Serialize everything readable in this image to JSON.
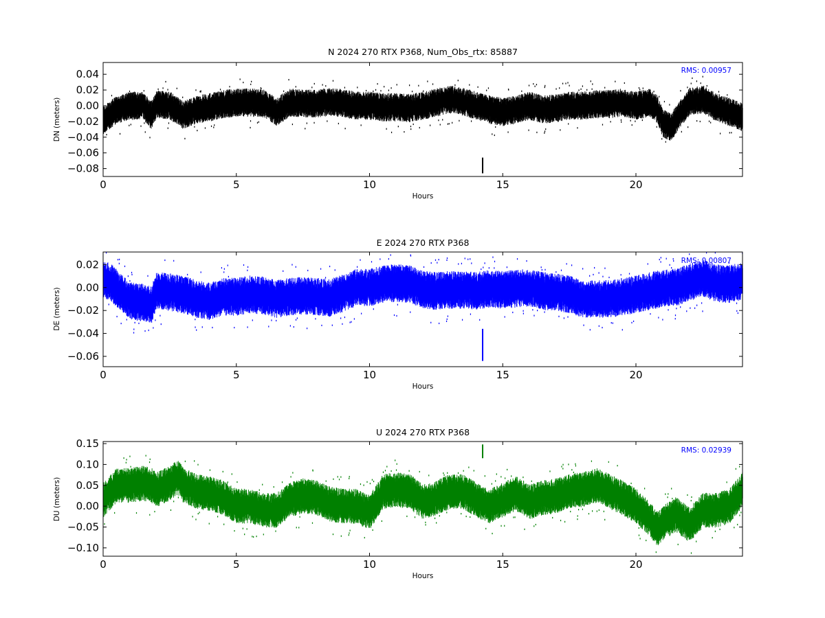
{
  "chart_data": [
    {
      "type": "scatter",
      "title": "N 2024 270 RTX  P368, Num_Obs_rtx: 85887",
      "xlabel": "Hours",
      "ylabel": "DN (meters)",
      "xlim": [
        0,
        24
      ],
      "ylim": [
        -0.09,
        0.055
      ],
      "xticks": [
        "0",
        "5",
        "10",
        "15",
        "20"
      ],
      "yticks": [
        "0.04",
        "0.02",
        "0.00",
        "−0.02",
        "−0.04",
        "−0.06",
        "−0.08"
      ],
      "grid": false,
      "annotation": "RMS:  0.00957",
      "series": [
        {
          "color": "#000000",
          "x": [
            0,
            0.5,
            1,
            1.5,
            1.8,
            2,
            2.5,
            3,
            3.5,
            4,
            4.5,
            5,
            5.5,
            6,
            6.5,
            7,
            7.5,
            8,
            8.5,
            9,
            9.5,
            10,
            10.5,
            11,
            11.5,
            12,
            12.5,
            13,
            13.5,
            14,
            14.5,
            15,
            15.5,
            16,
            16.5,
            17,
            17.5,
            18,
            18.5,
            19,
            19.5,
            20,
            20.5,
            20.8,
            21,
            21.3,
            21.6,
            22,
            22.5,
            23,
            23.5,
            24
          ],
          "y": [
            -0.018,
            -0.005,
            0.0,
            0.0,
            -0.012,
            0.002,
            0.0,
            -0.012,
            -0.005,
            -0.002,
            0.002,
            0.004,
            0.004,
            0.003,
            -0.008,
            0.004,
            0.003,
            0.003,
            0.005,
            0.003,
            0.0,
            0.0,
            -0.002,
            -0.002,
            -0.003,
            0.0,
            0.004,
            0.008,
            0.005,
            0.0,
            -0.005,
            -0.008,
            -0.005,
            0.0,
            -0.005,
            -0.003,
            0.0,
            0.0,
            0.002,
            0.002,
            0.004,
            0.0,
            0.004,
            -0.005,
            -0.022,
            -0.028,
            -0.012,
            0.005,
            0.008,
            -0.002,
            -0.008,
            -0.015
          ],
          "spread": 0.012,
          "outliers": [
            {
              "x": 14.22,
              "y": [
                -0.066,
                -0.086
              ]
            }
          ]
        }
      ]
    },
    {
      "type": "scatter",
      "title": "E 2024 270 RTX  P368",
      "xlabel": "Hours",
      "ylabel": "DE (meters)",
      "xlim": [
        0,
        24
      ],
      "ylim": [
        -0.069,
        0.031
      ],
      "xticks": [
        "0",
        "5",
        "10",
        "15",
        "20"
      ],
      "yticks": [
        "0.02",
        "0.00",
        "−0.02",
        "−0.04",
        "−0.06"
      ],
      "grid": false,
      "annotation": "RMS:  0.00807",
      "series": [
        {
          "color": "#0000ff",
          "x": [
            0,
            0.3,
            0.6,
            1,
            1.5,
            1.8,
            2,
            2.5,
            3,
            3.5,
            4,
            4.5,
            5,
            5.5,
            6,
            6.5,
            7,
            7.5,
            8,
            8.5,
            9,
            9.5,
            10,
            10.5,
            11,
            11.5,
            12,
            12.5,
            13,
            13.5,
            14,
            14.5,
            15,
            15.5,
            16,
            16.5,
            17,
            17.5,
            18,
            18.5,
            19,
            19.5,
            20,
            20.5,
            21,
            21.5,
            22,
            22.5,
            23,
            23.5,
            24
          ],
          "y": [
            0.008,
            0.004,
            -0.003,
            -0.012,
            -0.013,
            -0.015,
            -0.003,
            -0.004,
            -0.006,
            -0.01,
            -0.012,
            -0.008,
            -0.008,
            -0.006,
            -0.007,
            -0.01,
            -0.008,
            -0.007,
            -0.008,
            -0.009,
            -0.005,
            0.0,
            0.0,
            0.003,
            0.004,
            0.003,
            -0.002,
            -0.003,
            -0.002,
            -0.002,
            -0.003,
            -0.001,
            -0.002,
            -0.001,
            0.0,
            -0.003,
            -0.004,
            -0.006,
            -0.01,
            -0.01,
            -0.01,
            -0.008,
            -0.006,
            -0.003,
            -0.001,
            0.0,
            0.005,
            0.008,
            0.004,
            0.003,
            0.006
          ],
          "spread": 0.011,
          "outliers": [
            {
              "x": 14.22,
              "y": [
                -0.036,
                -0.064
              ]
            }
          ]
        }
      ]
    },
    {
      "type": "scatter",
      "title": "U 2024 270 RTX  P368",
      "xlabel": "Hours",
      "ylabel": "DU (meters)",
      "xlim": [
        0,
        24
      ],
      "ylim": [
        -0.12,
        0.155
      ],
      "xticks": [
        "0",
        "5",
        "10",
        "15",
        "20"
      ],
      "yticks": [
        "0.15",
        "0.10",
        "0.05",
        "0.00",
        "−0.05",
        "−0.10"
      ],
      "grid": false,
      "annotation": "RMS:  0.02939",
      "series": [
        {
          "color": "#008000",
          "x": [
            0,
            0.5,
            1,
            1.5,
            1.8,
            2,
            2.5,
            2.8,
            3,
            3.5,
            4,
            4.5,
            5,
            5.5,
            6,
            6.5,
            7,
            7.5,
            8,
            8.5,
            9,
            9.5,
            10,
            10.5,
            11,
            11.5,
            12,
            12.5,
            13,
            13.5,
            14,
            14.5,
            15,
            15.5,
            16,
            16.5,
            17,
            17.5,
            18,
            18.5,
            19,
            19.5,
            20,
            20.5,
            20.8,
            21,
            21.5,
            22,
            22.5,
            23,
            23.5,
            24
          ],
          "y": [
            0.015,
            0.05,
            0.05,
            0.055,
            0.05,
            0.04,
            0.055,
            0.07,
            0.05,
            0.035,
            0.03,
            0.02,
            0.0,
            0.0,
            -0.01,
            -0.01,
            0.015,
            0.025,
            0.02,
            0.005,
            0.0,
            0.0,
            -0.015,
            0.035,
            0.04,
            0.035,
            0.01,
            0.02,
            0.035,
            0.035,
            0.015,
            0.0,
            0.015,
            0.03,
            0.01,
            0.02,
            0.025,
            0.035,
            0.04,
            0.05,
            0.035,
            0.02,
            0.0,
            -0.03,
            -0.055,
            -0.04,
            -0.02,
            -0.045,
            -0.01,
            -0.01,
            0.0,
            0.04
          ],
          "spread": 0.028,
          "outliers": [
            {
              "x": 14.22,
              "y": [
                0.115,
                0.148
              ]
            }
          ]
        }
      ]
    }
  ]
}
